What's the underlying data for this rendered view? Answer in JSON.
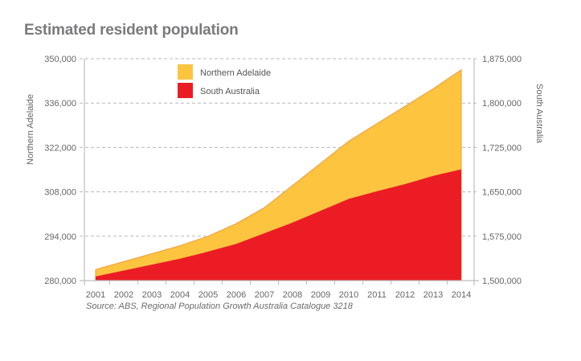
{
  "chart_data": {
    "type": "area",
    "title": "Estimated resident population",
    "source": "Source: ABS, Regional Population Growth Australia Catalogue 3218",
    "x": [
      "2001",
      "2002",
      "2003",
      "2004",
      "2005",
      "2006",
      "2007",
      "2008",
      "2009",
      "2010",
      "2011",
      "2012",
      "2013",
      "2014"
    ],
    "left_axis": {
      "label": "Northern Adelaide",
      "range": [
        280000,
        350000
      ],
      "ticks": [
        "280,000",
        "294,000",
        "308,000",
        "322,000",
        "336,000",
        "350,000"
      ],
      "tick_values": [
        280000,
        294000,
        308000,
        322000,
        336000,
        350000
      ]
    },
    "right_axis": {
      "label": "South Australia",
      "range": [
        1500000,
        1875000
      ],
      "ticks": [
        "1,500,000",
        "1,575,000",
        "1,650,000",
        "1,725,000",
        "1,800,000",
        "1,875,000"
      ],
      "tick_values": [
        1500000,
        1575000,
        1650000,
        1725000,
        1800000,
        1875000
      ]
    },
    "series": [
      {
        "name": "Northern Adelaide",
        "axis": "left",
        "color": "#fdc440",
        "values": [
          283500,
          286000,
          288500,
          291000,
          294000,
          298000,
          303000,
          310000,
          317000,
          324000,
          329500,
          335000,
          340500,
          346500
        ]
      },
      {
        "name": "South Australia",
        "axis": "right",
        "color": "#ec1c24",
        "values": [
          1507000,
          1517000,
          1527000,
          1537000,
          1549000,
          1562000,
          1580000,
          1598000,
          1618000,
          1638000,
          1651000,
          1663000,
          1677000,
          1688000
        ]
      }
    ],
    "legend": [
      "Northern Adelaide",
      "South Australia"
    ],
    "legend_position": "top-left-inside",
    "grid": true
  }
}
